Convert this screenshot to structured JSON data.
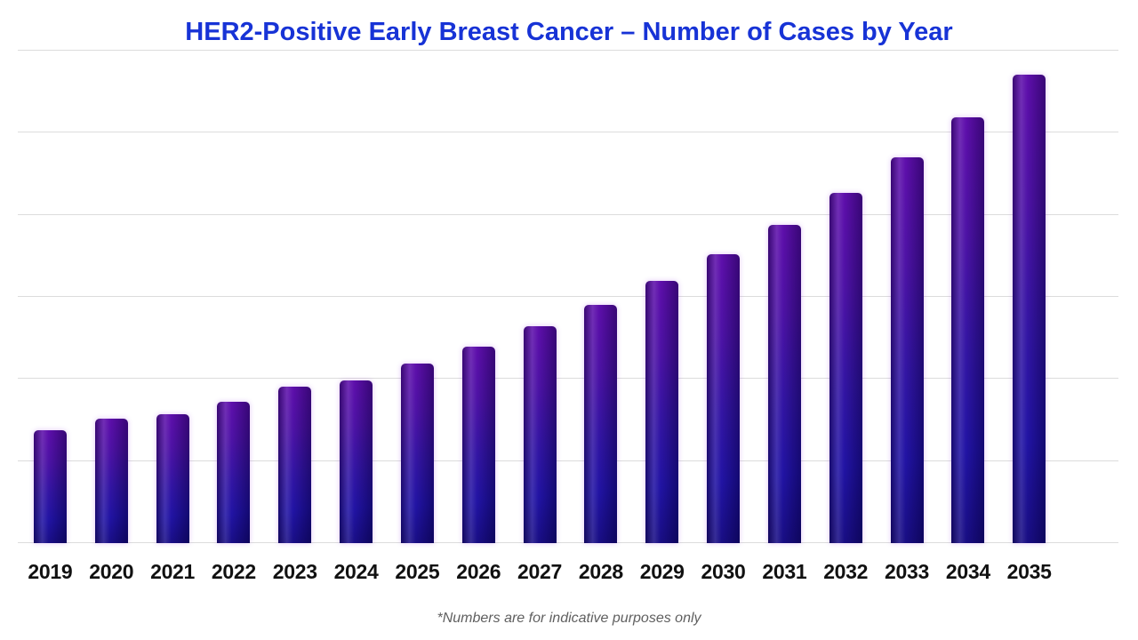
{
  "page": {
    "footnote": "*Numbers are for indicative purposes only"
  },
  "colors": {
    "background": "#ffffff",
    "title": "#1733d6",
    "gridline": "#dcdcdc",
    "x_label": "#111111",
    "footnote": "#5f5f5f",
    "bar_gradient_top": "#5c0aaa",
    "bar_gradient_bottom": "#140980"
  },
  "chart_data": {
    "type": "bar",
    "title": "HER2-Positive Early Breast Cancer – Number of Cases by Year",
    "categories": [
      "2019",
      "2020",
      "2021",
      "2022",
      "2023",
      "2024",
      "2025",
      "2026",
      "2027",
      "2028",
      "2029",
      "2030",
      "2031",
      "2032",
      "2033",
      "2034",
      "2035"
    ],
    "values": [
      1.38,
      1.52,
      1.57,
      1.72,
      1.91,
      1.98,
      2.19,
      2.39,
      2.64,
      2.9,
      3.2,
      3.52,
      3.88,
      4.27,
      4.7,
      5.19,
      5.71
    ],
    "value_units": "relative units; y-axis has no tick labels, one gridline interval = 1",
    "xlabel": "",
    "ylabel": "",
    "ylim": [
      0,
      6
    ],
    "grid": true,
    "gridline_count": 7,
    "legend": "none",
    "footnote": "*Numbers are for indicative purposes only"
  }
}
